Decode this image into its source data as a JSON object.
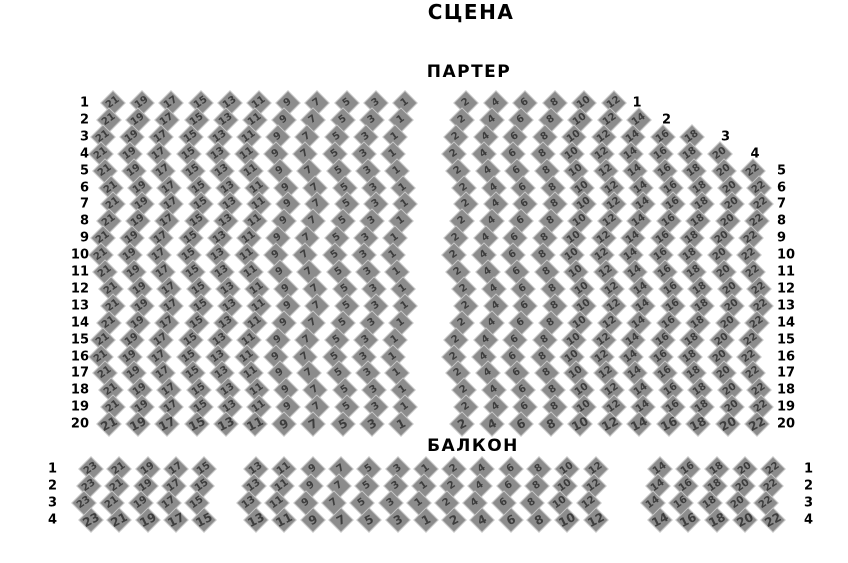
{
  "stage": {
    "label": "СЦЕНА"
  },
  "parterre": {
    "label": "ПАРТЕР",
    "rows": 20,
    "left_row_labels": [
      "1",
      "2",
      "3",
      "4",
      "5",
      "6",
      "7",
      "8",
      "9",
      "10",
      "11",
      "12",
      "13",
      "14",
      "15",
      "16",
      "17",
      "18",
      "19",
      "20"
    ],
    "left_block": {
      "seat_numbers": [
        21,
        19,
        17,
        15,
        13,
        11,
        9,
        7,
        5,
        3,
        1
      ]
    },
    "right_block": {
      "seat_numbers": [
        2,
        4,
        6,
        8,
        10,
        12,
        14,
        16,
        18,
        20,
        22
      ],
      "row_seat_counts": [
        6,
        7,
        9,
        10,
        11,
        11,
        11,
        11,
        11,
        11,
        11,
        11,
        11,
        11,
        11,
        11,
        11,
        11,
        11,
        11
      ],
      "stair_row_labels": [
        "1",
        "2",
        "3",
        "4"
      ],
      "edge_row_labels": [
        "5",
        "6",
        "7",
        "8",
        "9",
        "10",
        "11",
        "12",
        "13",
        "14",
        "15",
        "16",
        "17",
        "18",
        "19",
        "20"
      ]
    }
  },
  "balcony": {
    "label": "БАЛКОН",
    "rows": 4,
    "left_row_labels": [
      "1",
      "2",
      "3",
      "4"
    ],
    "right_row_labels": [
      "1",
      "2",
      "3",
      "4"
    ],
    "left_block": {
      "seat_numbers": [
        23,
        21,
        19,
        17,
        15
      ]
    },
    "middle_block": {
      "seat_numbers": [
        13,
        11,
        9,
        7,
        5,
        3,
        1,
        2,
        4,
        6,
        8,
        10,
        12
      ]
    },
    "right_block": {
      "seat_numbers": [
        14,
        16,
        18,
        20,
        22
      ]
    }
  },
  "colors": {
    "background": "#ffffff",
    "seat_fill": "#8c8c8c",
    "seat_border": "#c6c6c6",
    "seat_number": "#3d3d3d",
    "label_color": "#000000"
  }
}
